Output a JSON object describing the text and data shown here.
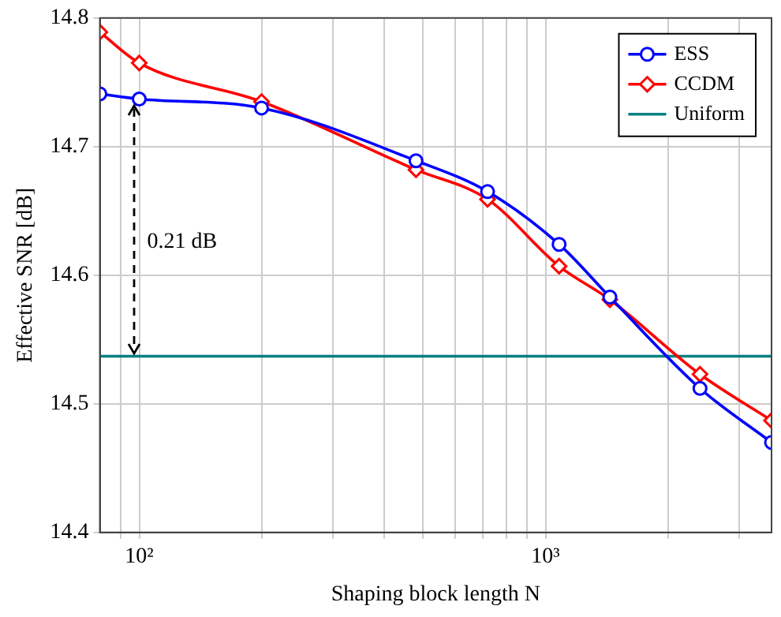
{
  "chart_data": {
    "type": "line",
    "xlabel": "Shaping block length N",
    "ylabel": "Effective SNR [dB]",
    "log": "x",
    "xlim": [
      80,
      3600
    ],
    "ylim": [
      14.4,
      14.8
    ],
    "xticks": [
      {
        "value": 90,
        "label": null
      },
      {
        "value": 100,
        "label": "10²"
      },
      {
        "value": 200,
        "label": null
      },
      {
        "value": 300,
        "label": null
      },
      {
        "value": 400,
        "label": null
      },
      {
        "value": 500,
        "label": null
      },
      {
        "value": 600,
        "label": null
      },
      {
        "value": 700,
        "label": null
      },
      {
        "value": 800,
        "label": null
      },
      {
        "value": 900,
        "label": null
      },
      {
        "value": 1000,
        "label": "10³"
      },
      {
        "value": 2000,
        "label": null
      },
      {
        "value": 3000,
        "label": null
      }
    ],
    "yticks": [
      14.4,
      14.5,
      14.6,
      14.7,
      14.8
    ],
    "grid": true,
    "legend": "top right",
    "series": [
      {
        "name": "ESS",
        "color": "#0000ff",
        "marker": "circle",
        "x": [
          80,
          100,
          200,
          480,
          720,
          1080,
          1440,
          2400,
          3600
        ],
        "values": [
          14.741,
          14.737,
          14.73,
          14.689,
          14.665,
          14.624,
          14.583,
          14.512,
          14.47
        ]
      },
      {
        "name": "CCDM",
        "color": "#ff0000",
        "marker": "diamond",
        "x": [
          80,
          100,
          200,
          480,
          720,
          1080,
          1440,
          2400,
          3600
        ],
        "values": [
          14.789,
          14.765,
          14.735,
          14.682,
          14.659,
          14.607,
          14.581,
          14.523,
          14.487
        ]
      },
      {
        "name": "Uniform",
        "color": "#008080",
        "marker": "none",
        "x": [
          80,
          3600
        ],
        "values": [
          14.537,
          14.537
        ]
      }
    ],
    "annotations": [
      "0.21 dB"
    ]
  }
}
